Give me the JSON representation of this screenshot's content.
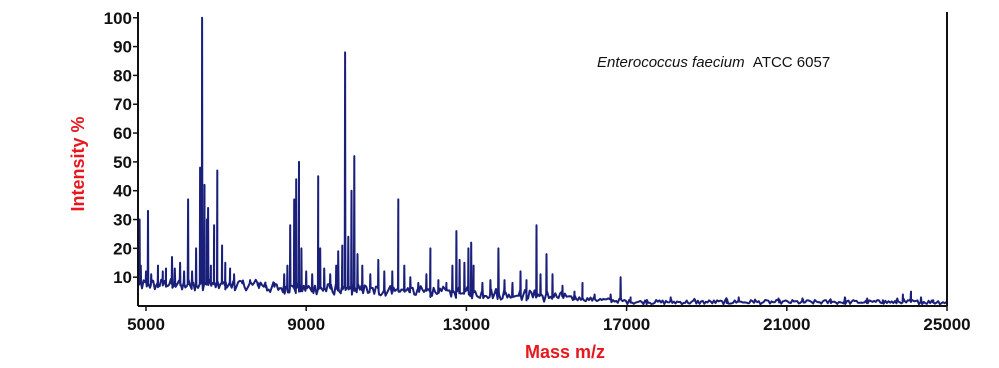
{
  "chart_data": {
    "type": "line",
    "title": "",
    "xlabel": "Mass m/z",
    "ylabel": "Intensity %",
    "annotation": {
      "italic": "Enterococcus faecium",
      "regular": "ATCC 6057"
    },
    "xlim": [
      4800,
      25000
    ],
    "ylim": [
      0,
      102
    ],
    "x_ticks": [
      5000,
      9000,
      13000,
      17000,
      21000,
      25000
    ],
    "y_ticks": [
      10,
      20,
      30,
      40,
      50,
      60,
      70,
      80,
      90,
      100
    ],
    "grid": false,
    "legend": "none",
    "colors": {
      "line": "#1a1f7a",
      "axis_title": "#e8171d",
      "axis": "#111111"
    },
    "series": [
      {
        "peaks": [
          [
            4840,
            30
          ],
          [
            4870,
            14
          ],
          [
            5000,
            12
          ],
          [
            5050,
            33
          ],
          [
            5130,
            11
          ],
          [
            5300,
            14
          ],
          [
            5420,
            12
          ],
          [
            5500,
            13
          ],
          [
            5650,
            17
          ],
          [
            5720,
            13
          ],
          [
            5850,
            15
          ],
          [
            5950,
            12
          ],
          [
            6050,
            37
          ],
          [
            6150,
            12
          ],
          [
            6250,
            20
          ],
          [
            6350,
            48
          ],
          [
            6400,
            100
          ],
          [
            6460,
            42
          ],
          [
            6520,
            30
          ],
          [
            6550,
            34
          ],
          [
            6620,
            14
          ],
          [
            6700,
            28
          ],
          [
            6780,
            47
          ],
          [
            6900,
            21
          ],
          [
            6980,
            15
          ],
          [
            7100,
            13
          ],
          [
            7200,
            11
          ],
          [
            7400,
            8
          ],
          [
            7600,
            9
          ],
          [
            7800,
            7
          ],
          [
            8000,
            7
          ],
          [
            8200,
            8
          ],
          [
            8450,
            11
          ],
          [
            8530,
            14
          ],
          [
            8600,
            28
          ],
          [
            8700,
            37
          ],
          [
            8750,
            44
          ],
          [
            8820,
            50
          ],
          [
            8880,
            20
          ],
          [
            9000,
            12
          ],
          [
            9150,
            11
          ],
          [
            9300,
            45
          ],
          [
            9350,
            20
          ],
          [
            9450,
            13
          ],
          [
            9600,
            11
          ],
          [
            9750,
            14
          ],
          [
            9800,
            19
          ],
          [
            9900,
            21
          ],
          [
            9970,
            88
          ],
          [
            10050,
            24
          ],
          [
            10130,
            40
          ],
          [
            10200,
            52
          ],
          [
            10280,
            18
          ],
          [
            10400,
            14
          ],
          [
            10600,
            11
          ],
          [
            10800,
            16
          ],
          [
            10950,
            12
          ],
          [
            11150,
            12
          ],
          [
            11300,
            37
          ],
          [
            11450,
            14
          ],
          [
            11600,
            10
          ],
          [
            11800,
            8
          ],
          [
            12000,
            11
          ],
          [
            12100,
            20
          ],
          [
            12300,
            9
          ],
          [
            12500,
            8
          ],
          [
            12650,
            14
          ],
          [
            12750,
            26
          ],
          [
            12830,
            16
          ],
          [
            12950,
            15
          ],
          [
            13050,
            20
          ],
          [
            13120,
            22
          ],
          [
            13180,
            14
          ],
          [
            13400,
            8
          ],
          [
            13600,
            9
          ],
          [
            13800,
            20
          ],
          [
            13950,
            9
          ],
          [
            14150,
            8
          ],
          [
            14350,
            12
          ],
          [
            14500,
            9
          ],
          [
            14750,
            28
          ],
          [
            14850,
            11
          ],
          [
            15000,
            18
          ],
          [
            15150,
            11
          ],
          [
            15400,
            7
          ],
          [
            15700,
            5
          ],
          [
            15900,
            8
          ],
          [
            16200,
            4
          ],
          [
            16600,
            4
          ],
          [
            16850,
            10
          ],
          [
            17100,
            3
          ],
          [
            17500,
            2
          ],
          [
            18100,
            3
          ],
          [
            18700,
            2
          ],
          [
            19500,
            2
          ],
          [
            19800,
            3
          ],
          [
            20200,
            2
          ],
          [
            20800,
            2
          ],
          [
            21400,
            2
          ],
          [
            22100,
            2
          ],
          [
            22450,
            3
          ],
          [
            23000,
            1
          ],
          [
            23400,
            2
          ],
          [
            23750,
            2
          ],
          [
            23900,
            4
          ],
          [
            24100,
            5
          ],
          [
            24350,
            3
          ],
          [
            24650,
            2
          ]
        ]
      }
    ]
  }
}
